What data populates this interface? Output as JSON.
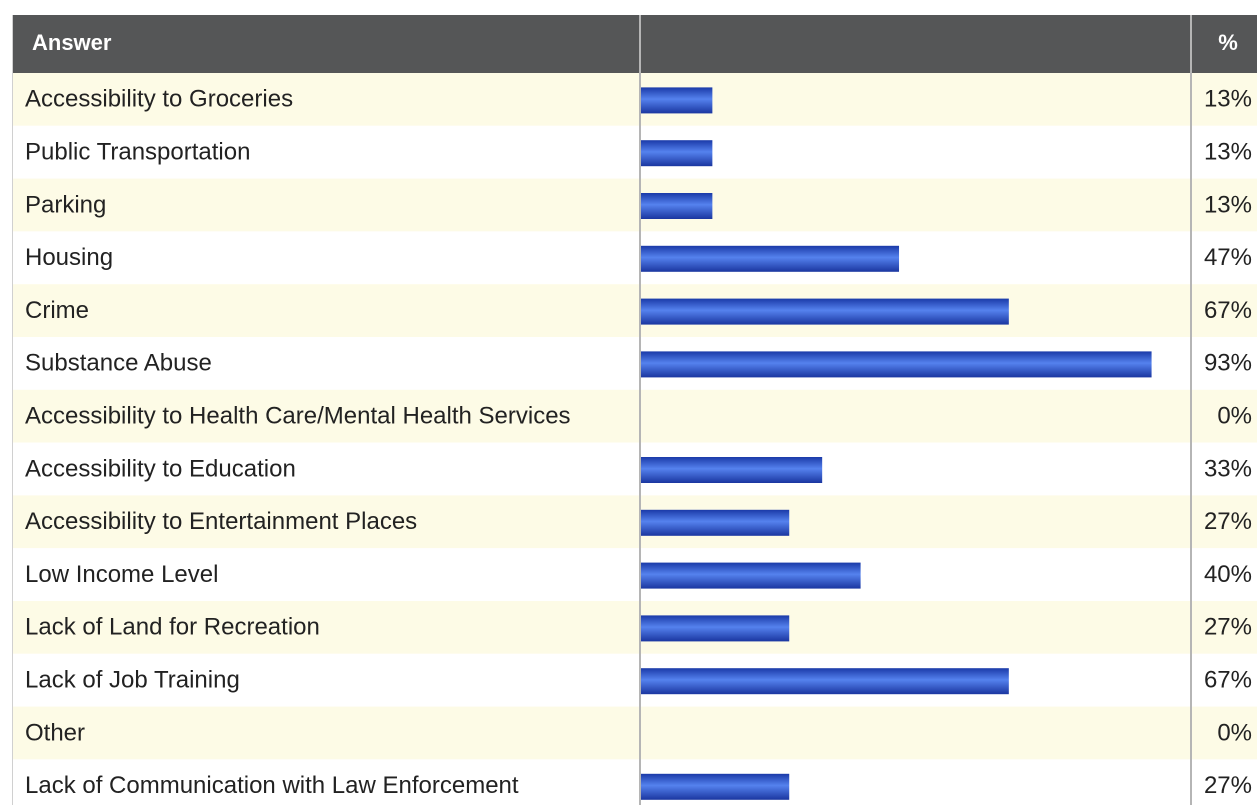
{
  "chart_data": {
    "type": "bar",
    "orientation": "horizontal",
    "headers": [
      "Answer",
      "%"
    ],
    "categories": [
      "Accessibility to Groceries",
      "Public Transportation",
      "Parking",
      "Housing",
      "Crime",
      "Substance Abuse",
      "Accessibility to Health Care/Mental Health Services",
      "Accessibility to Education",
      "Accessibility to Entertainment Places",
      "Low Income Level",
      "Lack of Land for Recreation",
      "Lack of Job Training",
      "Other",
      "Lack of Communication with Law Enforcement"
    ],
    "values": [
      13,
      13,
      13,
      47,
      67,
      93,
      0,
      33,
      27,
      40,
      27,
      67,
      0,
      27
    ],
    "value_labels": [
      "13%",
      "13%",
      "13%",
      "47%",
      "67%",
      "93%",
      "0%",
      "33%",
      "27%",
      "40%",
      "27%",
      "67%",
      "0%",
      "27%"
    ],
    "color": "#2b52cc",
    "xlim": [
      0,
      100
    ]
  }
}
